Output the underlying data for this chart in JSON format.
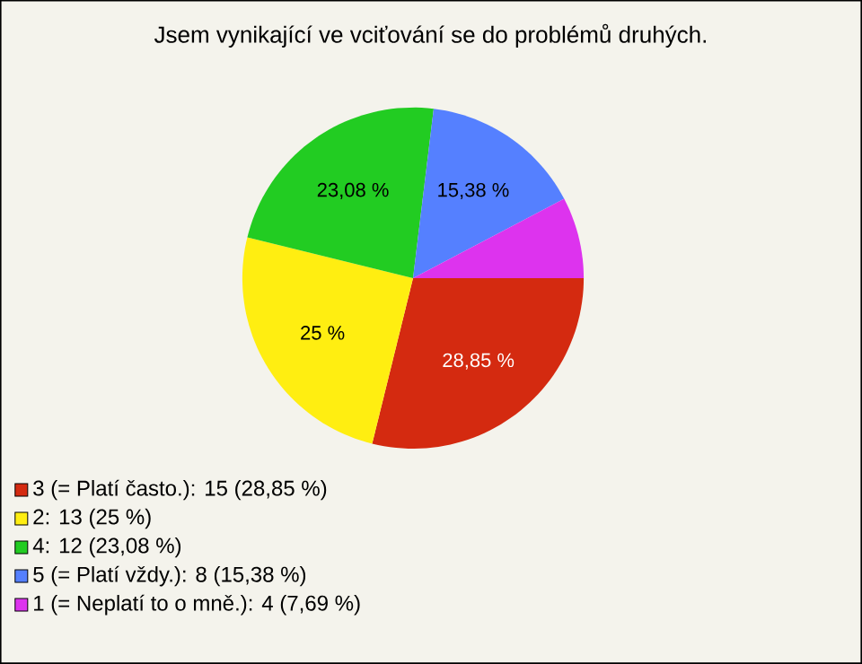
{
  "chart_data": {
    "type": "pie",
    "title": "Jsem vynikající ve vciťování se do problémů druhých.",
    "categories": [
      "3 (= Platí často.): 15 (28,85 %)",
      "2: 13 (25 %)",
      "4: 12 (23,08 %)",
      "5 (= Platí vždy.): 8 (15,38 %)",
      "1 (= Neplatí to o mně.): 4 (7,69 %)"
    ],
    "values": [
      28.85,
      25,
      23.08,
      15.38,
      7.69
    ],
    "colors": [
      "#d42a10",
      "#ffee11",
      "#22cc22",
      "#5580ff",
      "#dd33ee"
    ],
    "value_labels": [
      "28,85 %",
      "25 %",
      "23,08 %",
      "15,38 %",
      null
    ],
    "legend": "bottom left"
  }
}
